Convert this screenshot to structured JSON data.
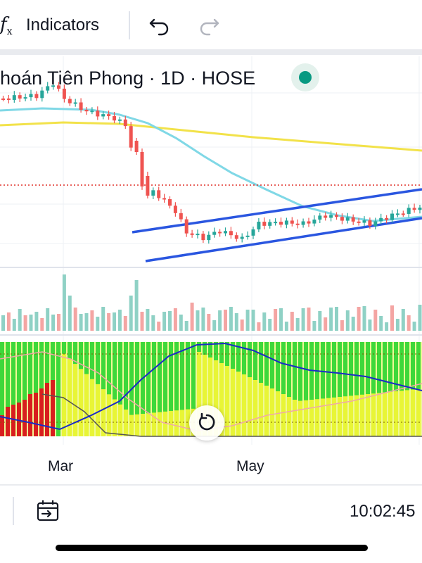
{
  "toolbar": {
    "fx_label": "f",
    "fx_sub": "x",
    "indicators_label": "Indicators"
  },
  "legend": {
    "title": "hoán Tiên Phong · 1D · HOSE",
    "status_color": "#089981"
  },
  "xaxis": {
    "labels": [
      "Mar",
      "May"
    ]
  },
  "bottom": {
    "time": "10:02:45"
  },
  "colors": {
    "up": "#26a69a",
    "down": "#ef5350",
    "ma_fast": "#80d8e6",
    "ma_slow": "#f2e24a",
    "channel": "#2a56e0",
    "dotted_level": "#e0302a",
    "osc_green": "#3ed83a",
    "osc_yellow": "#e8f536",
    "osc_red": "#d81e1e",
    "osc_blue": "#1a2bc8"
  },
  "chart_data": {
    "type": "candlestick",
    "title": "",
    "x_labels": [
      "Mar",
      "May"
    ],
    "panes": [
      "price",
      "volume",
      "oscillator"
    ],
    "overlays": [
      "moving-average-fast",
      "moving-average-slow",
      "up-channel",
      "dotted-level-line"
    ],
    "trend": "sharp decline in March, then gradual rising channel through May"
  }
}
